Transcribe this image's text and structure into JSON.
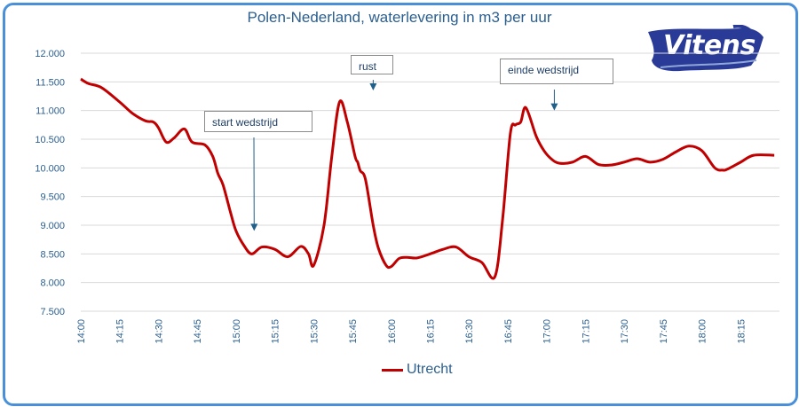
{
  "chart_data": {
    "type": "line",
    "title": "Polen-Nederland, waterlevering in m3 per uur",
    "xlabel": "",
    "ylabel": "",
    "ylim": [
      7500,
      12000
    ],
    "y_ticks": [
      "7.500",
      "8.000",
      "8.500",
      "9.000",
      "9.500",
      "10.000",
      "10.500",
      "11.000",
      "11.500",
      "12.000"
    ],
    "y_tick_values": [
      7500,
      8000,
      8500,
      9000,
      9500,
      10000,
      10500,
      11000,
      11500,
      12000
    ],
    "x_ticks": [
      "14:00",
      "14:15",
      "14:30",
      "14:45",
      "15:00",
      "15:15",
      "15:30",
      "15:45",
      "16:00",
      "16:15",
      "16:30",
      "16:45",
      "17:00",
      "17:15",
      "17:30",
      "17:45",
      "18:00",
      "18:15"
    ],
    "x_minutes_range": [
      0,
      270
    ],
    "grid": "horizontal",
    "legend_position": "bottom",
    "series": [
      {
        "name": "Utrecht",
        "color": "#c00000",
        "x_minutes": [
          0,
          3,
          8,
          15,
          20,
          25,
          28,
          30,
          33,
          36,
          40,
          43,
          48,
          51,
          53,
          55,
          58,
          60,
          63,
          66,
          70,
          75,
          80,
          85,
          88,
          90,
          94,
          97,
          100,
          103,
          106,
          107,
          108,
          110,
          113,
          115,
          118,
          120,
          123,
          126,
          130,
          135,
          140,
          145,
          150,
          155,
          160,
          163,
          166,
          168,
          170,
          172,
          176,
          179,
          182,
          185,
          190,
          195,
          200,
          205,
          210,
          215,
          220,
          225,
          230,
          235,
          240,
          245,
          248,
          250,
          255,
          260,
          268
        ],
        "values": [
          11550,
          11470,
          11400,
          11150,
          10950,
          10820,
          10800,
          10700,
          10450,
          10520,
          10680,
          10450,
          10400,
          10200,
          9900,
          9700,
          9200,
          8900,
          8650,
          8500,
          8620,
          8580,
          8450,
          8630,
          8500,
          8300,
          9000,
          10200,
          11150,
          10800,
          10200,
          10100,
          9950,
          9800,
          9000,
          8600,
          8300,
          8280,
          8420,
          8440,
          8430,
          8500,
          8580,
          8620,
          8450,
          8350,
          8100,
          9100,
          10600,
          10750,
          10800,
          11050,
          10550,
          10300,
          10150,
          10080,
          10100,
          10200,
          10060,
          10050,
          10100,
          10160,
          10100,
          10150,
          10280,
          10380,
          10300,
          10000,
          9960,
          9980,
          10100,
          10220,
          10220
        ]
      }
    ],
    "annotations": [
      {
        "text": "start wedstrijd",
        "arrow_at_minutes": 67,
        "arrow_at_value": 8700
      },
      {
        "text": "rust",
        "arrow_at_minutes": 113,
        "arrow_at_value": 11150
      },
      {
        "text": "einde wedstrijd",
        "arrow_at_minutes": 183,
        "arrow_at_value": 10800
      }
    ]
  },
  "logo": {
    "text": "Vitens",
    "color": "#2a3b97"
  }
}
